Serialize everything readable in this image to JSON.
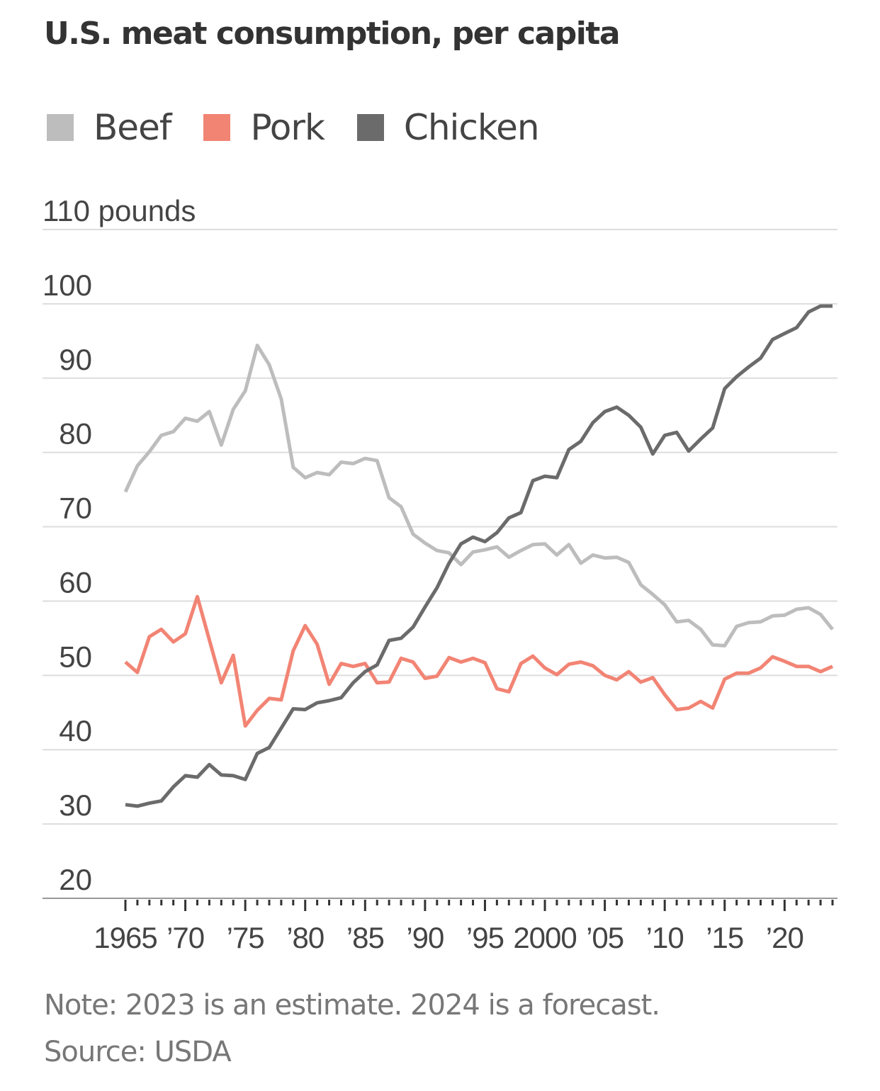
{
  "title": "U.S. meat consumption, per capita",
  "legend": [
    {
      "name": "Beef",
      "color": "#bdbdbd"
    },
    {
      "name": "Pork",
      "color": "#f28474"
    },
    {
      "name": "Chicken",
      "color": "#6b6b6b"
    }
  ],
  "note": "Note: 2023 is an estimate. 2024 is a forecast.",
  "source": "Source: USDA",
  "chart_data": {
    "type": "line",
    "title": "U.S. meat consumption, per capita",
    "ylabel": "pounds",
    "ylim": [
      20,
      110
    ],
    "y_ticks": [
      20,
      30,
      40,
      50,
      60,
      70,
      80,
      90,
      100,
      110
    ],
    "y_tick_labels": [
      "20",
      "30",
      "40",
      "50",
      "60",
      "70",
      "80",
      "90",
      "100",
      "110 pounds"
    ],
    "xlim": [
      1965,
      2024
    ],
    "x_tick_values": [
      1965,
      1970,
      1975,
      1980,
      1985,
      1990,
      1995,
      2000,
      2005,
      2010,
      2015,
      2020
    ],
    "x_tick_labels": [
      "1965",
      "’70",
      "’75",
      "’80",
      "’85",
      "’90",
      "’95",
      "2000",
      "’05",
      "’10",
      "’15",
      "’20"
    ],
    "x": [
      1965,
      1966,
      1967,
      1968,
      1969,
      1970,
      1971,
      1972,
      1973,
      1974,
      1975,
      1976,
      1977,
      1978,
      1979,
      1980,
      1981,
      1982,
      1983,
      1984,
      1985,
      1986,
      1987,
      1988,
      1989,
      1990,
      1991,
      1992,
      1993,
      1994,
      1995,
      1996,
      1997,
      1998,
      1999,
      2000,
      2001,
      2002,
      2003,
      2004,
      2005,
      2006,
      2007,
      2008,
      2009,
      2010,
      2011,
      2012,
      2013,
      2014,
      2015,
      2016,
      2017,
      2018,
      2019,
      2020,
      2021,
      2022,
      2023,
      2024
    ],
    "series": [
      {
        "name": "Beef",
        "color": "#bdbdbd",
        "values": [
          74.7,
          78.2,
          80.1,
          82.3,
          82.8,
          84.6,
          84.2,
          85.5,
          81.0,
          85.8,
          88.3,
          94.4,
          91.8,
          87.2,
          78.0,
          76.6,
          77.3,
          77.0,
          78.7,
          78.5,
          79.2,
          78.9,
          73.9,
          72.7,
          69.0,
          67.8,
          66.8,
          66.5,
          64.9,
          66.6,
          66.9,
          67.3,
          65.9,
          66.8,
          67.6,
          67.7,
          66.2,
          67.6,
          65.1,
          66.2,
          65.8,
          65.9,
          65.2,
          62.2,
          60.9,
          59.5,
          57.2,
          57.4,
          56.2,
          54.1,
          54.0,
          56.6,
          57.1,
          57.2,
          58.0,
          58.1,
          58.9,
          59.1,
          58.2,
          56.2
        ]
      },
      {
        "name": "Pork",
        "color": "#f28474",
        "values": [
          51.8,
          50.4,
          55.2,
          56.2,
          54.5,
          55.6,
          60.6,
          54.8,
          49.0,
          52.7,
          43.2,
          45.3,
          46.9,
          46.7,
          53.3,
          56.7,
          54.2,
          48.8,
          51.6,
          51.2,
          51.6,
          49.0,
          49.1,
          52.3,
          51.8,
          49.6,
          49.9,
          52.4,
          51.8,
          52.3,
          51.7,
          48.2,
          47.8,
          51.6,
          52.6,
          51.0,
          50.1,
          51.5,
          51.8,
          51.3,
          50.0,
          49.4,
          50.5,
          49.1,
          49.7,
          47.4,
          45.4,
          45.6,
          46.5,
          45.6,
          49.5,
          50.3,
          50.3,
          51.0,
          52.5,
          51.9,
          51.2,
          51.2,
          50.5,
          51.2
        ]
      },
      {
        "name": "Chicken",
        "color": "#6b6b6b",
        "values": [
          32.6,
          32.4,
          32.8,
          33.1,
          35.0,
          36.5,
          36.3,
          38.0,
          36.6,
          36.5,
          36.0,
          39.5,
          40.3,
          42.9,
          45.5,
          45.4,
          46.3,
          46.6,
          47.0,
          49.0,
          50.5,
          51.4,
          54.7,
          55.0,
          56.5,
          59.2,
          61.8,
          65.1,
          67.7,
          68.6,
          68.0,
          69.2,
          71.2,
          71.9,
          76.2,
          76.8,
          76.6,
          80.4,
          81.5,
          84.0,
          85.5,
          86.1,
          85.0,
          83.4,
          79.8,
          82.3,
          82.7,
          80.2,
          81.8,
          83.3,
          88.6,
          90.2,
          91.5,
          92.7,
          95.2,
          96.0,
          96.8,
          98.9,
          99.7,
          99.7
        ]
      }
    ]
  }
}
